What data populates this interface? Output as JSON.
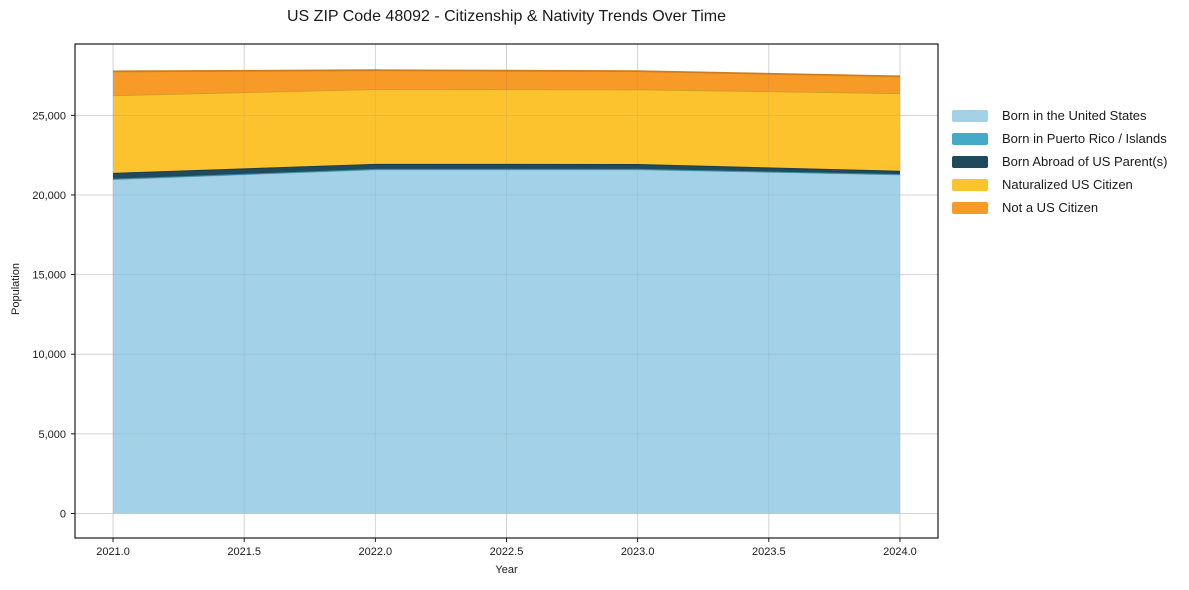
{
  "chart_data": {
    "type": "area",
    "stacked": true,
    "title": "US ZIP Code 48092 - Citizenship & Nativity Trends Over Time",
    "xlabel": "Year",
    "ylabel": "Population",
    "x": [
      2021,
      2022,
      2023,
      2024
    ],
    "series": [
      {
        "name": "Born in the United States",
        "color": "#a3d2e8",
        "values": [
          20990,
          21610,
          21610,
          21290
        ]
      },
      {
        "name": "Born in Puerto Rico / Islands",
        "color": "#45aac8",
        "values": [
          30,
          25,
          25,
          20
        ]
      },
      {
        "name": "Born Abroad of US Parent(s)",
        "color": "#1e4a5c",
        "values": [
          370,
          320,
          310,
          210
        ]
      },
      {
        "name": "Naturalized US Citizen",
        "color": "#fcc32f",
        "values": [
          4870,
          4690,
          4690,
          4870
        ]
      },
      {
        "name": "Not a US Citizen",
        "color": "#f79a28",
        "values": [
          1500,
          1190,
          1140,
          1060
        ]
      }
    ],
    "xlim": [
      2020.855,
      2024.145
    ],
    "ylim": [
      -1540,
      29480
    ],
    "x_ticks": [
      2021.0,
      2021.5,
      2022.0,
      2022.5,
      2023.0,
      2023.5,
      2024.0
    ],
    "x_tick_labels": [
      "2021.0",
      "2021.5",
      "2022.0",
      "2022.5",
      "2023.0",
      "2023.5",
      "2024.0"
    ],
    "y_ticks": [
      0,
      5000,
      10000,
      15000,
      20000,
      25000
    ],
    "y_tick_labels": [
      "0",
      "5,000",
      "10,000",
      "15,000",
      "20,000",
      "25,000"
    ],
    "grid": true,
    "legend_position": "right-outside"
  }
}
